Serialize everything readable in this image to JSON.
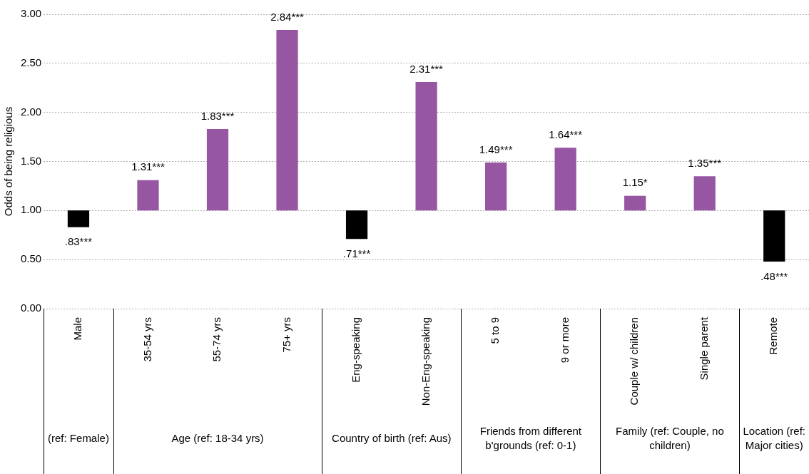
{
  "chart_data": {
    "type": "bar",
    "ylabel": "Odds of being religious",
    "categories": [
      "Male",
      "35-54 yrs",
      "55-74 yrs",
      "75+ yrs",
      "Eng-speaking",
      "Non-Eng-speaking",
      "5 to 9",
      "9 or more",
      "Couple w/ children",
      "Single parent",
      "Remote"
    ],
    "base": [
      1,
      1,
      1,
      1,
      1,
      1,
      1,
      1,
      1,
      1,
      1
    ],
    "values": [
      -0.17,
      0.31,
      0.83,
      1.84,
      -0.29,
      1.31,
      0.49,
      0.64,
      0.15,
      0.35,
      -0.52
    ],
    "value_labels": [
      ".83***",
      "1.31***",
      "1.83***",
      "2.84***",
      ".71***",
      "2.31***",
      "1.49***",
      "1.64***",
      "1.15*",
      "1.35***",
      ".48***"
    ],
    "colors": [
      "#000000",
      "#9656a2",
      "#9656a2",
      "#9656a2",
      "#000000",
      "#9656a2",
      "#9656a2",
      "#9656a2",
      "#9656a2",
      "#9656a2",
      "#000000"
    ],
    "ylim": [
      0,
      3
    ],
    "yticks": [
      {
        "value": 0,
        "label": "0.00"
      },
      {
        "value": 0.5,
        "label": "0.50"
      },
      {
        "value": 1,
        "label": "1.00"
      },
      {
        "value": 1.5,
        "label": "1.50"
      },
      {
        "value": 2,
        "label": "2.00"
      },
      {
        "value": 2.5,
        "label": "2.50"
      },
      {
        "value": 3,
        "label": "3.00"
      }
    ],
    "grid": "y",
    "legend": false,
    "annotations": [
      "(ref: Female)",
      "Age (ref: 18-34 yrs)",
      "Country of birth (ref: Aus)",
      "Friends from different b'grounds (ref: 0-1)",
      "Family (ref: Couple, no children)",
      "Location (ref: Major cities)"
    ]
  }
}
